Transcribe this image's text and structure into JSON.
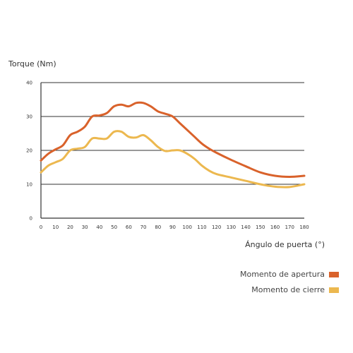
{
  "chart_data": {
    "type": "line",
    "xlabel": "Ángulo de puerta (°)",
    "ylabel": "Torque (Nm)",
    "xlim": [
      0,
      180
    ],
    "ylim": [
      0,
      40
    ],
    "x_ticks": [
      0,
      10,
      20,
      30,
      40,
      50,
      60,
      70,
      80,
      90,
      100,
      110,
      120,
      130,
      140,
      150,
      160,
      170,
      180
    ],
    "y_ticks": [
      0,
      10,
      20,
      30,
      40
    ],
    "grid": "horizontal",
    "legend_position": "bottom-right",
    "series": [
      {
        "name": "Momento de apertura",
        "color": "#d9622b",
        "x": [
          0,
          5,
          10,
          15,
          20,
          25,
          30,
          35,
          40,
          45,
          50,
          55,
          60,
          65,
          70,
          75,
          80,
          85,
          90,
          95,
          100,
          105,
          110,
          115,
          120,
          130,
          140,
          150,
          160,
          170,
          180
        ],
        "values": [
          17,
          19,
          20.3,
          21.5,
          24.5,
          25.5,
          27,
          30,
          30.3,
          31,
          33,
          33.5,
          33,
          34,
          34,
          33,
          31.5,
          30.8,
          30,
          28,
          26,
          24,
          22,
          20.5,
          19.3,
          17.2,
          15.3,
          13.5,
          12.5,
          12.2,
          12.5
        ]
      },
      {
        "name": "Momento de cierre",
        "color": "#ecb84f",
        "x": [
          0,
          5,
          10,
          15,
          20,
          25,
          30,
          35,
          40,
          45,
          50,
          55,
          60,
          65,
          70,
          75,
          80,
          85,
          90,
          95,
          100,
          105,
          110,
          115,
          120,
          130,
          140,
          150,
          160,
          170,
          180
        ],
        "values": [
          13.5,
          15.5,
          16.5,
          17.5,
          20,
          20.5,
          21,
          23.5,
          23.5,
          23.5,
          25.5,
          25.5,
          24,
          23.8,
          24.5,
          23,
          21,
          19.8,
          20,
          20,
          19,
          17.5,
          15.5,
          14,
          13,
          12,
          11,
          10,
          9.3,
          9.2,
          10
        ]
      }
    ]
  }
}
